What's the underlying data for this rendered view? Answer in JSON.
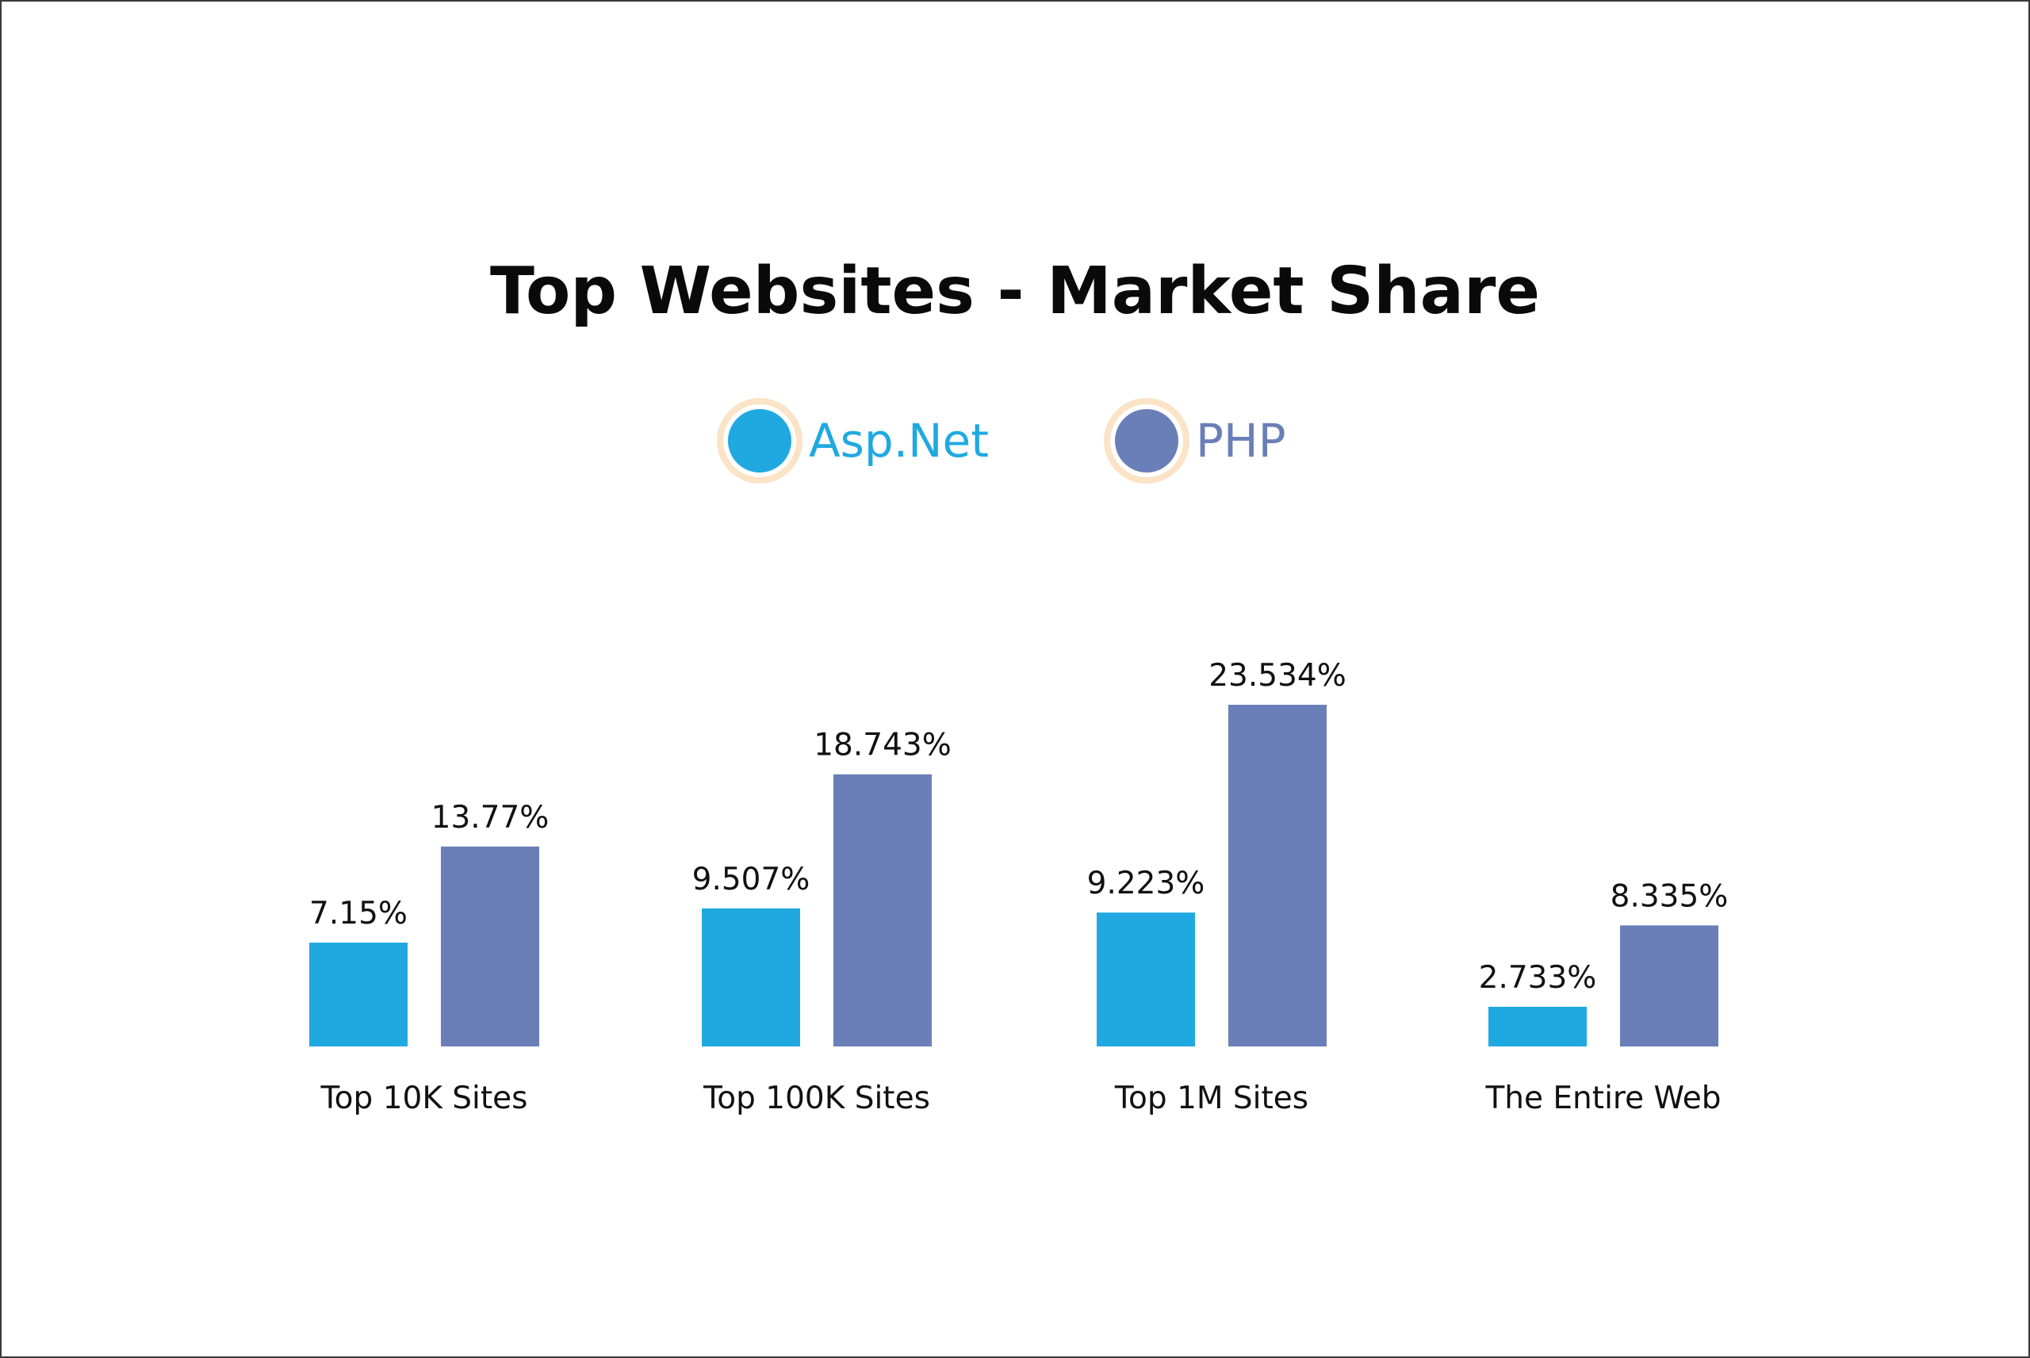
{
  "chart_data": {
    "type": "bar",
    "title": "Top Websites - Market Share",
    "categories": [
      "Top 10K Sites",
      "Top 100K Sites",
      "Top 1M Sites",
      "The Entire Web"
    ],
    "series": [
      {
        "name": "Asp.Net",
        "color": "#20A9E0",
        "values": [
          7.15,
          9.507,
          9.223,
          2.733
        ],
        "labels": [
          "7.15%",
          "9.507%",
          "9.223%",
          "2.733%"
        ]
      },
      {
        "name": "PHP",
        "color": "#6A7EB8",
        "values": [
          13.77,
          18.743,
          23.534,
          8.335
        ],
        "labels": [
          "13.77%",
          "18.743%",
          "23.534%",
          "8.335%"
        ]
      }
    ],
    "legend": "top-center",
    "legend_ring_color": "#FBE3C6",
    "grid": false,
    "axes_visible": false,
    "ylim": [
      0,
      23.534
    ]
  }
}
